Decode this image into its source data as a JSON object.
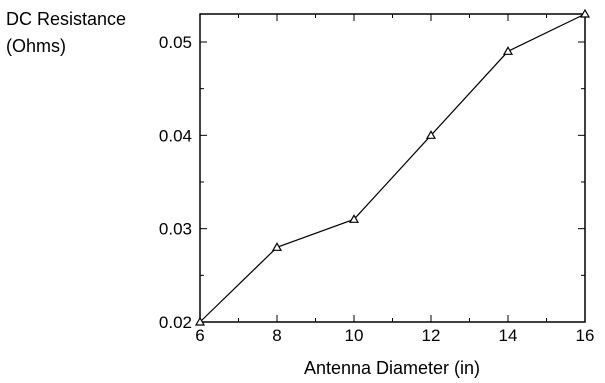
{
  "chart_data": {
    "type": "line",
    "title": "",
    "xlabel": "Antenna Diameter (in)",
    "ylabel_lines": [
      "DC Resistance",
      "(Ohms)"
    ],
    "xlim": [
      6,
      16
    ],
    "ylim": [
      0.02,
      0.053
    ],
    "x_ticks": [
      6,
      8,
      10,
      12,
      14,
      16
    ],
    "x_tick_labels": [
      "6",
      "8",
      "10",
      "12",
      "14",
      "16"
    ],
    "y_ticks": [
      0.02,
      0.03,
      0.04,
      0.05
    ],
    "y_tick_labels": [
      "0.02",
      "0.03",
      "0.04",
      "0.05"
    ],
    "grid": false,
    "marker": "triangle",
    "series": [
      {
        "x": [
          6,
          8,
          10,
          12,
          14,
          16
        ],
        "values": [
          0.02,
          0.028,
          0.031,
          0.04,
          0.049,
          0.053
        ]
      }
    ]
  }
}
